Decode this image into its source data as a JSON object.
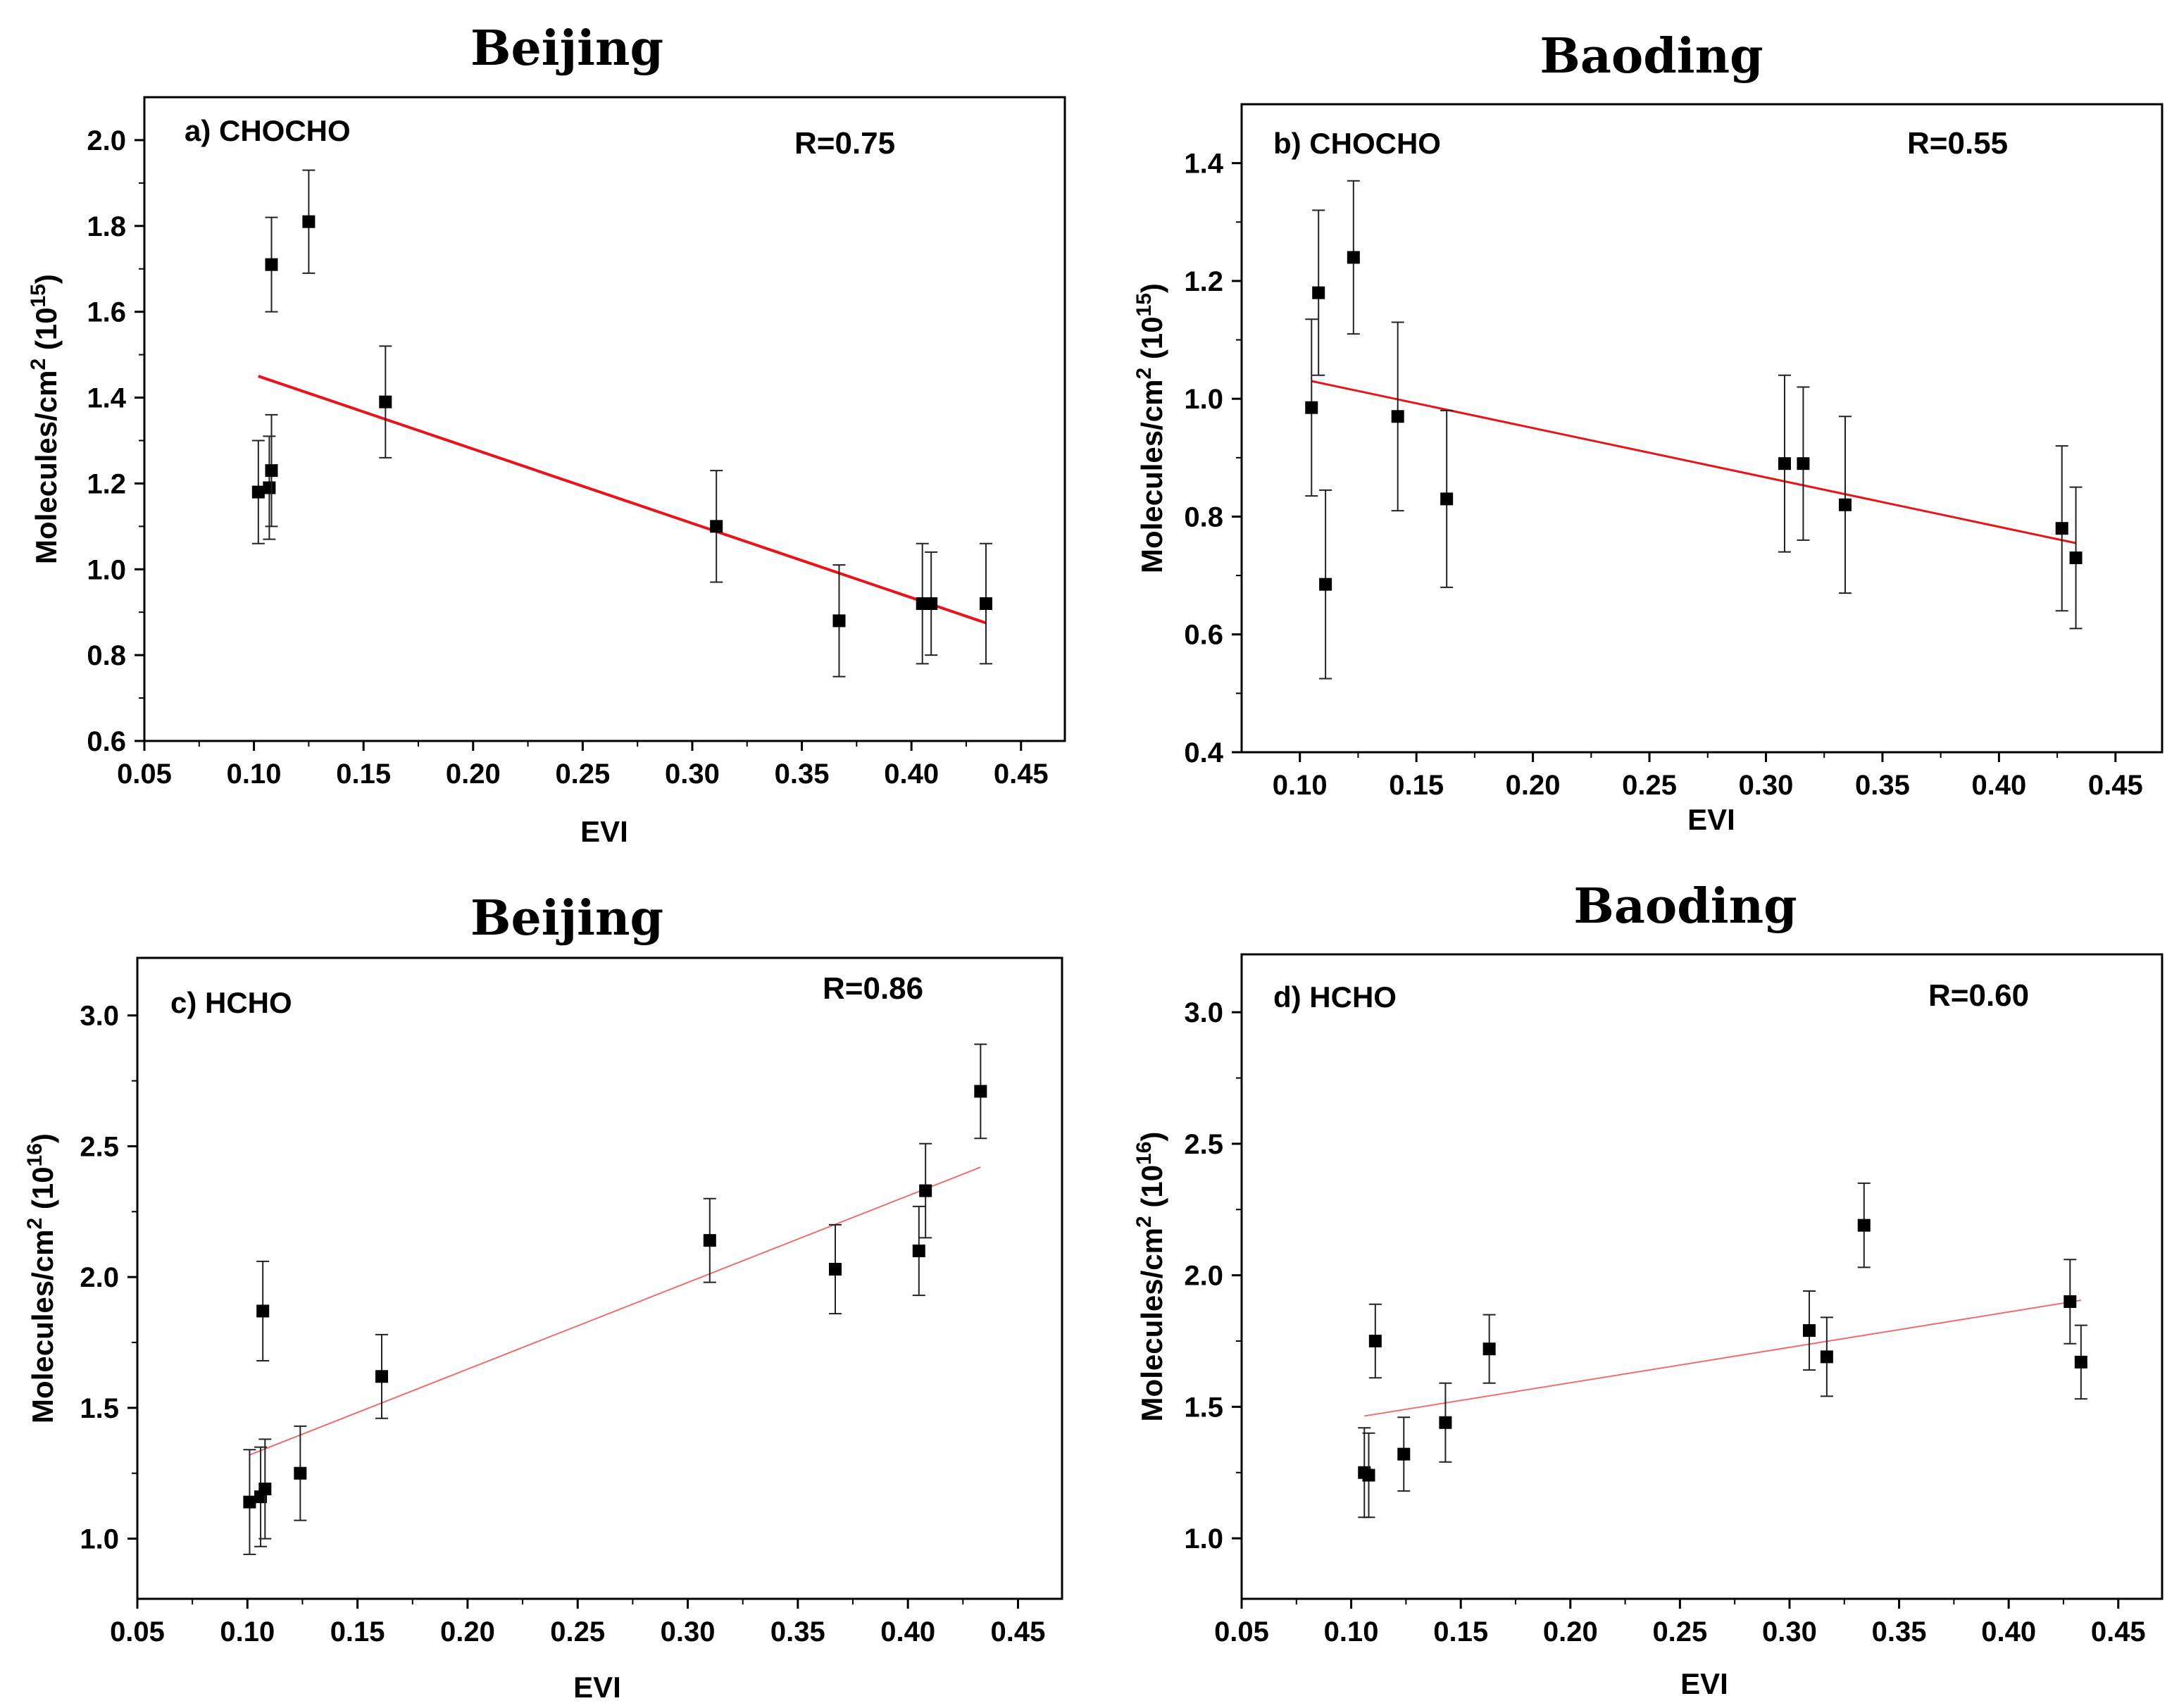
{
  "chart_data": [
    {
      "type": "scatter",
      "title": "Beijing",
      "panel_label": "a) CHOCHO",
      "annotation": "R=0.75",
      "xlabel": "EVI",
      "ylabel": "Molecules/cm2 (1015)",
      "ylabel_parts": {
        "text": "Molecules/cm",
        "sup1": "2",
        "mid": " (10",
        "sup2": "15",
        "end": ")"
      },
      "xlim": [
        0.05,
        0.47
      ],
      "ylim": [
        0.6,
        2.1
      ],
      "xticks": [
        0.05,
        0.1,
        0.15,
        0.2,
        0.25,
        0.3,
        0.35,
        0.4,
        0.45
      ],
      "xtick_labels": [
        "0.05",
        "0.10",
        "0.15",
        "0.20",
        "0.25",
        "0.30",
        "0.35",
        "0.40",
        "0.45"
      ],
      "yticks": [
        0.6,
        0.8,
        1.0,
        1.2,
        1.4,
        1.6,
        1.8,
        2.0
      ],
      "ytick_labels": [
        "0.6",
        "0.8",
        "1.0",
        "1.2",
        "1.4",
        "1.6",
        "1.8",
        "2.0"
      ],
      "points": [
        {
          "x": 0.102,
          "y": 1.18,
          "err": 0.12
        },
        {
          "x": 0.107,
          "y": 1.19,
          "err": 0.12
        },
        {
          "x": 0.108,
          "y": 1.23,
          "err": 0.13
        },
        {
          "x": 0.108,
          "y": 1.71,
          "err": 0.11
        },
        {
          "x": 0.125,
          "y": 1.81,
          "err": 0.12
        },
        {
          "x": 0.16,
          "y": 1.39,
          "err": 0.13
        },
        {
          "x": 0.311,
          "y": 1.1,
          "err": 0.13
        },
        {
          "x": 0.367,
          "y": 0.88,
          "err": 0.13
        },
        {
          "x": 0.405,
          "y": 0.92,
          "err": 0.14
        },
        {
          "x": 0.409,
          "y": 0.92,
          "err": 0.12
        },
        {
          "x": 0.434,
          "y": 0.92,
          "err": 0.14
        }
      ],
      "fit": {
        "x": [
          0.102,
          0.434
        ],
        "y": [
          1.45,
          0.875
        ],
        "color": "#e8141a",
        "width": 4
      }
    },
    {
      "type": "scatter",
      "title": "Baoding",
      "panel_label": "b) CHOCHO",
      "annotation": "R=0.55",
      "xlabel": "EVI",
      "ylabel": "Molecules/cm2 (1015)",
      "ylabel_parts": {
        "text": "Molecules/cm",
        "sup1": "2",
        "mid": " (10",
        "sup2": "15",
        "end": ")"
      },
      "xlim": [
        0.075,
        0.47
      ],
      "ylim": [
        0.4,
        1.5
      ],
      "xticks": [
        0.1,
        0.15,
        0.2,
        0.25,
        0.3,
        0.35,
        0.4,
        0.45
      ],
      "xtick_labels": [
        "0.10",
        "0.15",
        "0.20",
        "0.25",
        "0.30",
        "0.35",
        "0.40",
        "0.45"
      ],
      "yticks": [
        0.4,
        0.6,
        0.8,
        1.0,
        1.2,
        1.4
      ],
      "ytick_labels": [
        "0.4",
        "0.6",
        "0.8",
        "1.0",
        "1.2",
        "1.4"
      ],
      "points": [
        {
          "x": 0.105,
          "y": 0.985,
          "err": 0.15
        },
        {
          "x": 0.108,
          "y": 1.18,
          "err": 0.14
        },
        {
          "x": 0.111,
          "y": 0.685,
          "err": 0.16
        },
        {
          "x": 0.123,
          "y": 1.24,
          "err": 0.13
        },
        {
          "x": 0.142,
          "y": 0.97,
          "err": 0.16
        },
        {
          "x": 0.163,
          "y": 0.83,
          "err": 0.15
        },
        {
          "x": 0.308,
          "y": 0.89,
          "err": 0.15
        },
        {
          "x": 0.316,
          "y": 0.89,
          "err": 0.13
        },
        {
          "x": 0.334,
          "y": 0.82,
          "err": 0.15
        },
        {
          "x": 0.427,
          "y": 0.78,
          "err": 0.14
        },
        {
          "x": 0.433,
          "y": 0.73,
          "err": 0.12
        }
      ],
      "fit": {
        "x": [
          0.105,
          0.433
        ],
        "y": [
          1.03,
          0.755
        ],
        "color": "#e8141a",
        "width": 3
      }
    },
    {
      "type": "scatter",
      "title": "Beijing",
      "panel_label": "c) HCHO",
      "annotation": "R=0.86",
      "xlabel": "EVI",
      "ylabel": "Molecules/cm2 (1016)",
      "ylabel_parts": {
        "text": "Molecules/cm",
        "sup1": "2",
        "mid": " (10",
        "sup2": "16",
        "end": ")"
      },
      "xlim": [
        0.05,
        0.47
      ],
      "ylim": [
        0.77,
        3.22
      ],
      "xticks": [
        0.05,
        0.1,
        0.15,
        0.2,
        0.25,
        0.3,
        0.35,
        0.4,
        0.45
      ],
      "xtick_labels": [
        "0.05",
        "0.10",
        "0.15",
        "0.20",
        "0.25",
        "0.30",
        "0.35",
        "0.40",
        "0.45"
      ],
      "yticks": [
        1.0,
        1.5,
        2.0,
        2.5,
        3.0
      ],
      "ytick_labels": [
        "1.0",
        "1.5",
        "2.0",
        "2.5",
        "3.0"
      ],
      "points": [
        {
          "x": 0.101,
          "y": 1.14,
          "err": 0.2
        },
        {
          "x": 0.106,
          "y": 1.16,
          "err": 0.19
        },
        {
          "x": 0.107,
          "y": 1.87,
          "err": 0.19
        },
        {
          "x": 0.108,
          "y": 1.19,
          "err": 0.19
        },
        {
          "x": 0.124,
          "y": 1.25,
          "err": 0.18
        },
        {
          "x": 0.161,
          "y": 1.62,
          "err": 0.16
        },
        {
          "x": 0.31,
          "y": 2.14,
          "err": 0.16
        },
        {
          "x": 0.367,
          "y": 2.03,
          "err": 0.17
        },
        {
          "x": 0.405,
          "y": 2.1,
          "err": 0.17
        },
        {
          "x": 0.408,
          "y": 2.33,
          "err": 0.18
        },
        {
          "x": 0.433,
          "y": 2.71,
          "err": 0.18
        }
      ],
      "fit": {
        "x": [
          0.101,
          0.433
        ],
        "y": [
          1.32,
          2.42
        ],
        "color": "#ec6e6e",
        "width": 2
      }
    },
    {
      "type": "scatter",
      "title": "Baoding",
      "panel_label": "d) HCHO",
      "annotation": "R=0.60",
      "xlabel": "EVI",
      "ylabel": "Molecules/cm2 (1016)",
      "ylabel_parts": {
        "text": "Molecules/cm",
        "sup1": "2",
        "mid": " (10",
        "sup2": "16",
        "end": ")"
      },
      "xlim": [
        0.05,
        0.47
      ],
      "ylim": [
        0.77,
        3.22
      ],
      "xticks": [
        0.05,
        0.1,
        0.15,
        0.2,
        0.25,
        0.3,
        0.35,
        0.4,
        0.45
      ],
      "xtick_labels": [
        "0.05",
        "0.10",
        "0.15",
        "0.20",
        "0.25",
        "0.30",
        "0.35",
        "0.40",
        "0.45"
      ],
      "yticks": [
        1.0,
        1.5,
        2.0,
        2.5,
        3.0
      ],
      "ytick_labels": [
        "1.0",
        "1.5",
        "2.0",
        "2.5",
        "3.0"
      ],
      "points": [
        {
          "x": 0.106,
          "y": 1.25,
          "err": 0.17
        },
        {
          "x": 0.108,
          "y": 1.24,
          "err": 0.16
        },
        {
          "x": 0.111,
          "y": 1.75,
          "err": 0.14
        },
        {
          "x": 0.124,
          "y": 1.32,
          "err": 0.14
        },
        {
          "x": 0.143,
          "y": 1.44,
          "err": 0.15
        },
        {
          "x": 0.163,
          "y": 1.72,
          "err": 0.13
        },
        {
          "x": 0.309,
          "y": 1.79,
          "err": 0.15
        },
        {
          "x": 0.317,
          "y": 1.69,
          "err": 0.15
        },
        {
          "x": 0.334,
          "y": 2.19,
          "err": 0.16
        },
        {
          "x": 0.428,
          "y": 1.9,
          "err": 0.16
        },
        {
          "x": 0.433,
          "y": 1.67,
          "err": 0.14
        }
      ],
      "fit": {
        "x": [
          0.106,
          0.433
        ],
        "y": [
          1.465,
          1.905
        ],
        "color": "#ec6e6e",
        "width": 2
      }
    }
  ]
}
